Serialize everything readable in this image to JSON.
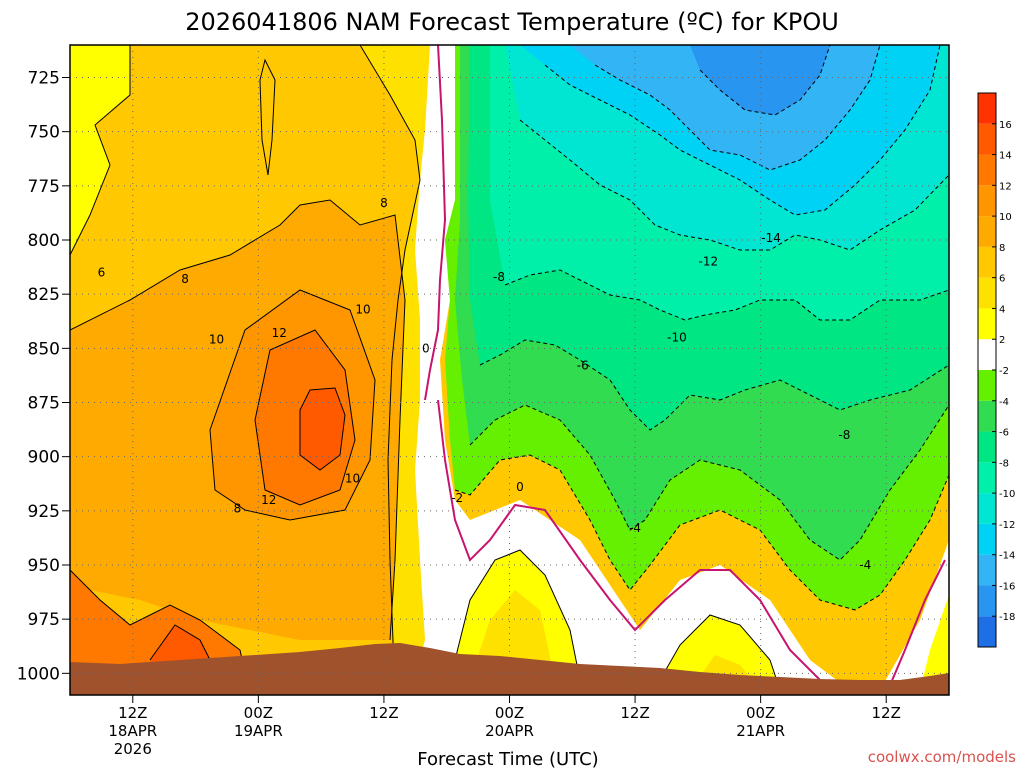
{
  "chart_data": {
    "type": "heatmap",
    "title": "2026041806 NAM Forecast Temperature (ºC) for KPOU",
    "xlabel": "Forecast Time (UTC)",
    "ylabel": "",
    "ylim": [
      1010,
      710
    ],
    "y_ticks": [
      "725",
      "750",
      "775",
      "800",
      "825",
      "850",
      "875",
      "900",
      "925",
      "950",
      "975",
      "1000"
    ],
    "y_tick_values": [
      725,
      750,
      775,
      800,
      825,
      850,
      875,
      900,
      925,
      950,
      975,
      1000
    ],
    "x_ticks": [
      {
        "hour": 6,
        "l1": "12Z",
        "l2": "18APR",
        "l3": "2026"
      },
      {
        "hour": 18,
        "l1": "00Z",
        "l2": "19APR",
        "l3": ""
      },
      {
        "hour": 30,
        "l1": "12Z",
        "l2": "",
        "l3": ""
      },
      {
        "hour": 42,
        "l1": "00Z",
        "l2": "20APR",
        "l3": ""
      },
      {
        "hour": 54,
        "l1": "12Z",
        "l2": "",
        "l3": ""
      },
      {
        "hour": 66,
        "l1": "00Z",
        "l2": "21APR",
        "l3": ""
      },
      {
        "hour": 78,
        "l1": "12Z",
        "l2": "",
        "l3": ""
      }
    ],
    "xlim": [
      0,
      84
    ],
    "grid": true,
    "colorbar": {
      "levels": [
        -20,
        -18,
        -16,
        -14,
        -12,
        -10,
        -8,
        -6,
        -4,
        -2,
        2,
        4,
        6,
        8,
        10,
        12,
        14,
        16,
        18
      ],
      "tick_labels": [
        "-18",
        "-16",
        "-14",
        "-12",
        "-10",
        "-8",
        "-6",
        "-4",
        "-2",
        "2",
        "4",
        "6",
        "8",
        "10",
        "12",
        "14",
        "16"
      ],
      "colors": [
        "#1e6ee6",
        "#2896f0",
        "#32b4f5",
        "#00d2f5",
        "#00e6d2",
        "#00f0aa",
        "#00e682",
        "#32dc50",
        "#64f000",
        "#ffffff",
        "#ffff00",
        "#ffe100",
        "#ffc800",
        "#ffaa00",
        "#ff9600",
        "#ff7800",
        "#ff5a00",
        "#ff3200"
      ]
    },
    "contour_labels": [
      {
        "text": "6",
        "hour": 3,
        "p": 815
      },
      {
        "text": "8",
        "hour": 11,
        "p": 818
      },
      {
        "text": "12",
        "hour": 20,
        "p": 843
      },
      {
        "text": "10",
        "hour": 14,
        "p": 846
      },
      {
        "text": "10",
        "hour": 28,
        "p": 832
      },
      {
        "text": "8",
        "hour": 30,
        "p": 783
      },
      {
        "text": "0",
        "hour": 34,
        "p": 850
      },
      {
        "text": "10",
        "hour": 27,
        "p": 910
      },
      {
        "text": "12",
        "hour": 19,
        "p": 920
      },
      {
        "text": "8",
        "hour": 16,
        "p": 924
      },
      {
        "text": "-2",
        "hour": 37,
        "p": 919
      },
      {
        "text": "0",
        "hour": 43,
        "p": 914
      },
      {
        "text": "-8",
        "hour": 41,
        "p": 817
      },
      {
        "text": "-6",
        "hour": 49,
        "p": 858
      },
      {
        "text": "-10",
        "hour": 58,
        "p": 845
      },
      {
        "text": "-12",
        "hour": 61,
        "p": 810
      },
      {
        "text": "-14",
        "hour": 67,
        "p": 799
      },
      {
        "text": "-8",
        "hour": 74,
        "p": 890
      },
      {
        "text": "-4",
        "hour": 54,
        "p": 933
      },
      {
        "text": "-4",
        "hour": 76,
        "p": 950
      }
    ]
  },
  "credit": "coolwx.com/models"
}
